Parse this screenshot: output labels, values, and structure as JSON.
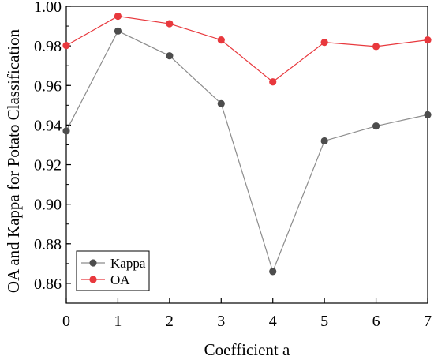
{
  "chart_data": {
    "type": "line",
    "title": "",
    "xlabel": "Coefficient a",
    "ylabel": "OA and Kappa for Potato Classification",
    "x": [
      0,
      1,
      2,
      3,
      4,
      5,
      6,
      7
    ],
    "xlim": [
      0,
      7
    ],
    "ylim": [
      0.85,
      1.0
    ],
    "xticks": [
      "0",
      "1",
      "2",
      "3",
      "4",
      "5",
      "6",
      "7"
    ],
    "yticks": [
      "0.86",
      "0.88",
      "0.90",
      "0.92",
      "0.94",
      "0.96",
      "0.98",
      "1.00"
    ],
    "grid": false,
    "legend_position": "bottom-left",
    "series": [
      {
        "name": "Kappa",
        "color": "#4d4d4d",
        "line_color": "#8c8c8c",
        "marker": "circle",
        "values": [
          0.937,
          0.9875,
          0.975,
          0.9508,
          0.866,
          0.932,
          0.9395,
          0.9452
        ]
      },
      {
        "name": "OA",
        "color": "#e8383d",
        "line_color": "#e8383d",
        "marker": "circle",
        "values": [
          0.9802,
          0.995,
          0.9912,
          0.983,
          0.9618,
          0.9818,
          0.9797,
          0.983
        ]
      }
    ]
  }
}
